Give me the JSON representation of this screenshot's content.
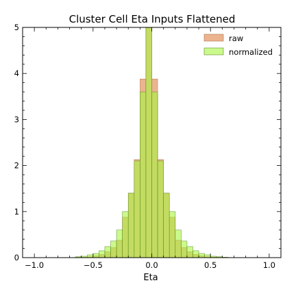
{
  "chart_data": {
    "type": "bar",
    "title": "Cluster Cell Eta Inputs Flattened",
    "xlabel": "Eta",
    "ylabel": "",
    "xlim": [
      -1.1,
      1.1
    ],
    "ylim": [
      0,
      5
    ],
    "xticks": [
      -1.0,
      -0.5,
      0.0,
      0.5,
      1.0
    ],
    "xtick_labels": [
      "−1.0",
      "−0.5",
      "0.0",
      "0.5",
      "1.0"
    ],
    "yticks": [
      0,
      1,
      2,
      3,
      4,
      5
    ],
    "ytick_labels": [
      "0",
      "1",
      "2",
      "3",
      "4",
      "5"
    ],
    "grid": false,
    "legend_position": "top-right",
    "bin_edges": [
      -0.65,
      -0.6,
      -0.55,
      -0.5,
      -0.45,
      -0.4,
      -0.35,
      -0.3,
      -0.25,
      -0.2,
      -0.15,
      -0.1,
      -0.05,
      0.0,
      0.05,
      0.1,
      0.15,
      0.2,
      0.25,
      0.3,
      0.35,
      0.4,
      0.45,
      0.5,
      0.55,
      0.6,
      0.65
    ],
    "series": [
      {
        "name": "raw",
        "color": "#e8a77b",
        "values": [
          0.01,
          0.01,
          0.02,
          0.04,
          0.07,
          0.13,
          0.22,
          0.38,
          0.88,
          1.4,
          2.13,
          3.88,
          5.0,
          3.88,
          2.13,
          1.4,
          0.88,
          0.38,
          0.22,
          0.13,
          0.07,
          0.04,
          0.02,
          0.01,
          0.01,
          0.0
        ]
      },
      {
        "name": "normalized",
        "color": "#a8f542",
        "values": [
          0.02,
          0.03,
          0.06,
          0.09,
          0.15,
          0.24,
          0.36,
          0.6,
          1.0,
          1.4,
          2.1,
          3.6,
          5.0,
          3.6,
          2.1,
          1.4,
          1.0,
          0.6,
          0.36,
          0.24,
          0.15,
          0.09,
          0.06,
          0.03,
          0.02,
          0.01
        ]
      }
    ]
  }
}
